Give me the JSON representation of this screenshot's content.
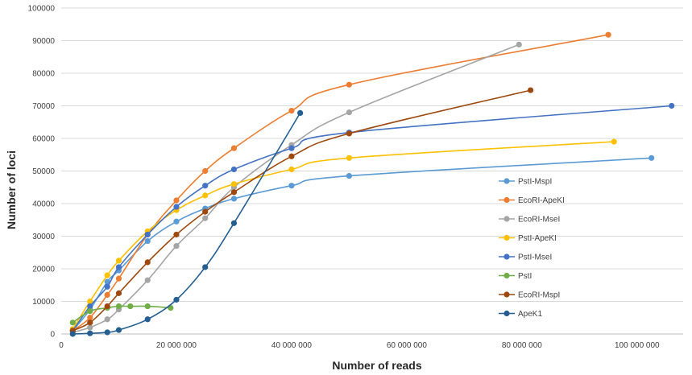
{
  "chart_data": {
    "type": "line",
    "title": "",
    "xlabel": "Number of reads",
    "ylabel": "Number of loci",
    "xlim": [
      0,
      108000000
    ],
    "ylim": [
      0,
      100000
    ],
    "grid": "horizontal",
    "legend_position": "right",
    "x_ticks": [
      0,
      20000000,
      40000000,
      60000000,
      80000000,
      100000000
    ],
    "x_tick_labels": [
      "0",
      "20 000 000",
      "40 000 000",
      "60 000 000",
      "80 000 000",
      "100 000 000"
    ],
    "y_ticks": [
      0,
      10000,
      20000,
      30000,
      40000,
      50000,
      60000,
      70000,
      80000,
      90000,
      100000
    ],
    "y_tick_labels": [
      "0",
      "10000",
      "20000",
      "30000",
      "40000",
      "50000",
      "60000",
      "70000",
      "80000",
      "90000",
      "100000"
    ],
    "series": [
      {
        "name": "PstI-MspI",
        "color": "#5b9bd5",
        "x": [
          2000000,
          5000000,
          8000000,
          10000000,
          15000000,
          20000000,
          25000000,
          30000000,
          40000000,
          50000000,
          102500000
        ],
        "y": [
          1000,
          7500,
          16000,
          19500,
          28500,
          34500,
          38500,
          41500,
          45500,
          48500,
          54000
        ]
      },
      {
        "name": "EcoRI-ApeKI",
        "color": "#ed7d31",
        "x": [
          2000000,
          5000000,
          8000000,
          10000000,
          15000000,
          20000000,
          25000000,
          30000000,
          40000000,
          50000000,
          95000000
        ],
        "y": [
          1000,
          5000,
          12000,
          17000,
          30500,
          41000,
          50000,
          57000,
          68500,
          76500,
          91800
        ]
      },
      {
        "name": "EcoRI-MseI",
        "color": "#a5a5a5",
        "x": [
          2000000,
          5000000,
          8000000,
          10000000,
          15000000,
          20000000,
          25000000,
          30000000,
          40000000,
          50000000,
          79500000
        ],
        "y": [
          500,
          2000,
          4500,
          7500,
          16500,
          27000,
          35500,
          45000,
          58000,
          68000,
          88800
        ]
      },
      {
        "name": "PstI-ApeKI",
        "color": "#ffc000",
        "x": [
          2000000,
          5000000,
          8000000,
          10000000,
          15000000,
          20000000,
          25000000,
          30000000,
          40000000,
          50000000,
          96000000
        ],
        "y": [
          1500,
          10000,
          18000,
          22500,
          31500,
          38000,
          42500,
          46000,
          50500,
          54000,
          59000
        ]
      },
      {
        "name": "PstI-MseI",
        "color": "#4472c4",
        "x": [
          2000000,
          5000000,
          8000000,
          10000000,
          15000000,
          20000000,
          25000000,
          30000000,
          40000000,
          50000000,
          106000000
        ],
        "y": [
          1000,
          8500,
          14500,
          20500,
          30500,
          39000,
          45500,
          50500,
          57000,
          61800,
          70000
        ]
      },
      {
        "name": "PstI",
        "color": "#70ad47",
        "x": [
          2000000,
          5000000,
          8000000,
          10000000,
          12000000,
          15000000,
          19000000
        ],
        "y": [
          3500,
          7000,
          8000,
          8500,
          8500,
          8500,
          8000
        ]
      },
      {
        "name": "EcoRI-MspI",
        "color": "#9e480e",
        "x": [
          2000000,
          5000000,
          8000000,
          10000000,
          15000000,
          20000000,
          25000000,
          30000000,
          40000000,
          50000000,
          81500000
        ],
        "y": [
          1000,
          3500,
          8500,
          12500,
          22000,
          30500,
          37500,
          43500,
          54500,
          61500,
          74800
        ]
      },
      {
        "name": "ApeK1",
        "color": "#255e91",
        "x": [
          2000000,
          5000000,
          8000000,
          10000000,
          15000000,
          20000000,
          25000000,
          30000000,
          41500000
        ],
        "y": [
          0,
          200,
          500,
          1200,
          4500,
          10500,
          20500,
          34000,
          67800
        ]
      }
    ]
  }
}
